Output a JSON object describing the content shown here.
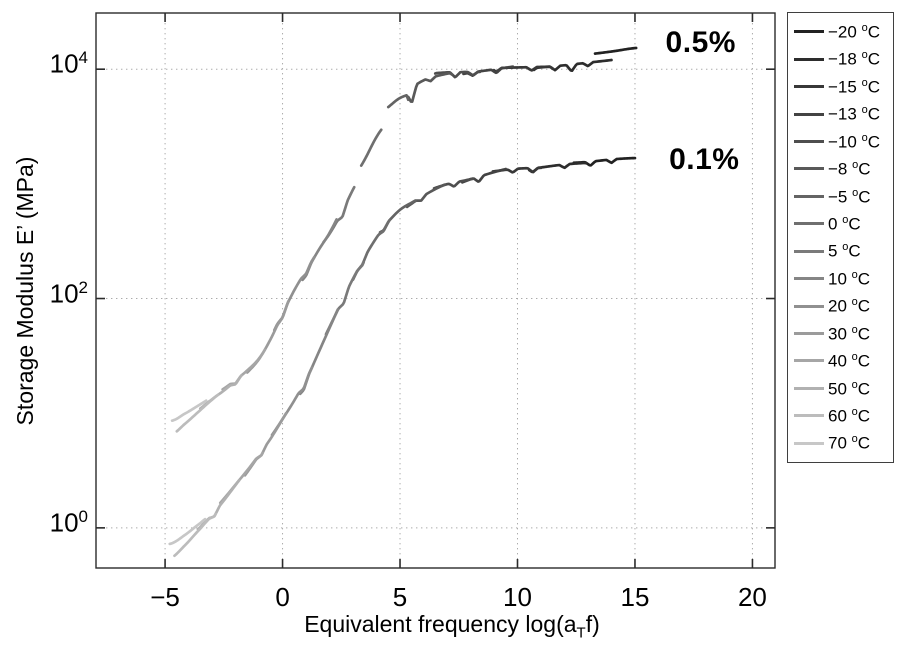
{
  "figure": {
    "ylabel": "Storage Modulus E’ (MPa)",
    "xlabel": {
      "pre": "Equivalent frequency log(a",
      "sub": "T",
      "post": "f)"
    }
  },
  "chart_data": {
    "type": "line",
    "title": "",
    "xlabel": "Equivalent frequency log(a_T f)",
    "ylabel": "Storage Modulus E' (MPa)",
    "axes": {
      "x_scale": "linear",
      "y_scale": "log10",
      "xlim": [
        -7.94,
        20.96
      ],
      "ylim_log10": [
        -0.35,
        4.49
      ],
      "x_ticks": [
        -5,
        0,
        5,
        10,
        15,
        20
      ],
      "y_ticks": [
        {
          "base": "10",
          "exp": "0",
          "value": 1
        },
        {
          "base": "10",
          "exp": "2",
          "value": 100
        },
        {
          "base": "10",
          "exp": "4",
          "value": 10000
        }
      ],
      "grid": {
        "show": true,
        "style": "dotted",
        "color": "#ababab"
      },
      "frame_color": "#2b2b2b"
    },
    "annotations": [
      {
        "text": "0.5%",
        "x": 17.8,
        "y_log10": 4.23
      },
      {
        "text": "0.1%",
        "x": 17.95,
        "y_log10": 3.21
      }
    ],
    "legend": {
      "position": "outside-right",
      "entries": [
        {
          "label": "−20 °C",
          "color": "#222222"
        },
        {
          "label": "−18 °C",
          "color": "#2d2d2d"
        },
        {
          "label": "−15 °C",
          "color": "#383838"
        },
        {
          "label": "−13 °C",
          "color": "#434343"
        },
        {
          "label": "−10 °C",
          "color": "#4e4e4e"
        },
        {
          "label": "−8 °C",
          "color": "#595959"
        },
        {
          "label": "−5 °C",
          "color": "#646464"
        },
        {
          "label": "0 °C",
          "color": "#6f6f6f"
        },
        {
          "label": "5 °C",
          "color": "#7a7a7a"
        },
        {
          "label": "10 °C",
          "color": "#858585"
        },
        {
          "label": "20 °C",
          "color": "#909090"
        },
        {
          "label": "30 °C",
          "color": "#9b9b9b"
        },
        {
          "label": "40 °C",
          "color": "#a6a6a6"
        },
        {
          "label": "50 °C",
          "color": "#b1b1b1"
        },
        {
          "label": "60 °C",
          "color": "#bcbcbc"
        },
        {
          "label": "70 °C",
          "color": "#c7c7c7"
        }
      ]
    },
    "series": [
      {
        "name": "0.5% strain master curve",
        "label": "0.5%",
        "backbone_log10": [
          [
            -4.7,
            0.88
          ],
          [
            -4.2,
            0.95
          ],
          [
            -3.6,
            1.04
          ],
          [
            -3.0,
            1.13
          ],
          [
            -2.5,
            1.2
          ],
          [
            -2.0,
            1.28
          ],
          [
            -1.5,
            1.37
          ],
          [
            -1.0,
            1.48
          ],
          [
            -0.5,
            1.65
          ],
          [
            0,
            1.86
          ],
          [
            0.5,
            2.07
          ],
          [
            1.0,
            2.25
          ],
          [
            1.5,
            2.42
          ],
          [
            2.0,
            2.57
          ],
          [
            2.5,
            2.76
          ],
          [
            3.0,
            2.98
          ],
          [
            3.5,
            3.18
          ],
          [
            4.0,
            3.4
          ],
          [
            4.5,
            3.57
          ],
          [
            5.0,
            3.74
          ],
          [
            5.5,
            3.86
          ],
          [
            6.0,
            3.92
          ],
          [
            6.5,
            3.945
          ],
          [
            7.0,
            3.96
          ],
          [
            8.0,
            3.98
          ],
          [
            9.0,
            3.995
          ],
          [
            10.0,
            4.01
          ],
          [
            11.0,
            4.025
          ],
          [
            12.0,
            4.04
          ],
          [
            13.0,
            4.06
          ],
          [
            14.0,
            4.08
          ],
          [
            15.05,
            4.105
          ]
        ],
        "segments": [
          {
            "t": 15,
            "x": [
              -4.7,
              -3.25
            ],
            "dy": [
              0.055,
              0.015
            ]
          },
          {
            "t": 14,
            "x": [
              -4.5,
              -2.75
            ],
            "dy": [
              -0.06,
              -0.005
            ]
          },
          {
            "t": 13,
            "x": [
              -3.5,
              -1.75
            ],
            "dy": [
              -0.015,
              0.005
            ]
          },
          {
            "t": 12,
            "x": [
              -2.55,
              -0.75
            ],
            "dy": [
              0.015,
              -0.005
            ]
          },
          {
            "t": 11,
            "x": [
              -1.5,
              0.25
            ],
            "dy": [
              -0.015,
              0.01
            ]
          },
          {
            "t": 10,
            "x": [
              -0.35,
              1.35
            ],
            "dy": [
              0.015,
              -0.01
            ]
          },
          {
            "t": 9,
            "x": [
              0.85,
              2.3
            ],
            "dy": [
              -0.025,
              0.01
            ]
          },
          {
            "t": 8,
            "x": [
              1.75,
              3.05
            ],
            "dy": [
              0.0,
              -0.03
            ]
          },
          {
            "t": 7,
            "x": [
              3.35,
              4.2
            ],
            "dy": [
              0.04,
              0.0
            ]
          },
          {
            "t": 6,
            "x": [
              4.5,
              5.35
            ],
            "dy": [
              0.1,
              -0.055
            ]
          },
          {
            "t": 5,
            "x": [
              5.35,
              7.2
            ],
            "dy": [
              -0.03,
              0.005
            ]
          },
          {
            "t": 4,
            "x": [
              6.5,
              8.4
            ],
            "dy": [
              0.02,
              -0.01
            ]
          },
          {
            "t": 3,
            "x": [
              7.7,
              9.8
            ],
            "dy": [
              -0.015,
              0.015
            ]
          },
          {
            "t": 2,
            "x": [
              9.0,
              11.5
            ],
            "dy": [
              0.015,
              -0.01
            ]
          },
          {
            "t": 1,
            "x": [
              10.7,
              14.0
            ],
            "dy": [
              -0.01,
              0.0
            ]
          },
          {
            "t": 0,
            "x": [
              13.3,
              15.05
            ],
            "dy": [
              0.07,
              0.08
            ]
          }
        ],
        "notches": [
          [
            -2.0,
            0.03
          ],
          [
            0.0,
            0.035
          ],
          [
            1.0,
            0.03
          ],
          [
            2.55,
            0.05
          ],
          [
            5.5,
            0.13
          ],
          [
            6.3,
            0.03
          ],
          [
            7.35,
            0.045
          ],
          [
            8.1,
            0.03
          ],
          [
            9.1,
            0.035
          ],
          [
            10.6,
            0.03
          ],
          [
            11.6,
            0.035
          ],
          [
            12.3,
            0.06
          ],
          [
            13.0,
            0.03
          ]
        ]
      },
      {
        "name": "0.1% strain master curve",
        "label": "0.1%",
        "backbone_log10": [
          [
            -4.8,
            -0.2
          ],
          [
            -4.2,
            -0.11
          ],
          [
            -3.5,
            0.02
          ],
          [
            -3.0,
            0.12
          ],
          [
            -2.5,
            0.24
          ],
          [
            -2.0,
            0.37
          ],
          [
            -1.5,
            0.5
          ],
          [
            -1.0,
            0.64
          ],
          [
            -0.5,
            0.78
          ],
          [
            0,
            0.94
          ],
          [
            0.5,
            1.11
          ],
          [
            1.0,
            1.3
          ],
          [
            1.5,
            1.52
          ],
          [
            2.0,
            1.74
          ],
          [
            2.5,
            1.96
          ],
          [
            3.0,
            2.18
          ],
          [
            3.5,
            2.37
          ],
          [
            4.0,
            2.53
          ],
          [
            4.5,
            2.66
          ],
          [
            5.0,
            2.77
          ],
          [
            5.5,
            2.84
          ],
          [
            6.0,
            2.9
          ],
          [
            6.5,
            2.95
          ],
          [
            7.0,
            2.99
          ],
          [
            7.5,
            3.02
          ],
          [
            8.0,
            3.05
          ],
          [
            9.0,
            3.095
          ],
          [
            10.0,
            3.13
          ],
          [
            11.0,
            3.15
          ],
          [
            12.0,
            3.17
          ],
          [
            13.0,
            3.18
          ],
          [
            14.0,
            3.2
          ],
          [
            15.0,
            3.21
          ]
        ],
        "segments": [
          {
            "t": 15,
            "x": [
              -4.8,
              -3.3
            ],
            "dy": [
              0.06,
              0.015
            ]
          },
          {
            "t": 14,
            "x": [
              -4.6,
              -2.85
            ],
            "dy": [
              -0.065,
              -0.005
            ]
          },
          {
            "t": 13,
            "x": [
              -3.6,
              -1.85
            ],
            "dy": [
              -0.015,
              0.005
            ]
          },
          {
            "t": 12,
            "x": [
              -2.65,
              -0.85
            ],
            "dy": [
              0.015,
              -0.005
            ]
          },
          {
            "t": 11,
            "x": [
              -1.6,
              0.15
            ],
            "dy": [
              -0.015,
              0.01
            ]
          },
          {
            "t": 10,
            "x": [
              -0.45,
              1.25
            ],
            "dy": [
              0.015,
              -0.01
            ]
          },
          {
            "t": 9,
            "x": [
              0.75,
              2.35
            ],
            "dy": [
              -0.02,
              0.01
            ]
          },
          {
            "t": 8,
            "x": [
              1.85,
              3.45
            ],
            "dy": [
              0.015,
              -0.015
            ]
          },
          {
            "t": 7,
            "x": [
              3.0,
              4.55
            ],
            "dy": [
              -0.015,
              0.01
            ]
          },
          {
            "t": 6,
            "x": [
              4.15,
              5.65
            ],
            "dy": [
              0.015,
              -0.005
            ]
          },
          {
            "t": 5,
            "x": [
              5.3,
              6.9
            ],
            "dy": [
              -0.015,
              0.01
            ]
          },
          {
            "t": 4,
            "x": [
              6.45,
              8.1
            ],
            "dy": [
              0.015,
              -0.01
            ]
          },
          {
            "t": 3,
            "x": [
              7.65,
              9.5
            ],
            "dy": [
              -0.015,
              0.015
            ]
          },
          {
            "t": 2,
            "x": [
              8.95,
              11.0
            ],
            "dy": [
              0.015,
              -0.01
            ]
          },
          {
            "t": 1,
            "x": [
              10.5,
              12.9
            ],
            "dy": [
              -0.01,
              0.005
            ]
          },
          {
            "t": 0,
            "x": [
              12.4,
              15.0
            ],
            "dy": [
              0.01,
              0.015
            ]
          }
        ],
        "notches": [
          [
            -2.9,
            0.035
          ],
          [
            -0.9,
            0.03
          ],
          [
            0.9,
            0.04
          ],
          [
            2.6,
            0.05
          ],
          [
            3.4,
            0.03
          ],
          [
            4.3,
            0.03
          ],
          [
            5.9,
            0.03
          ],
          [
            7.3,
            0.035
          ],
          [
            8.35,
            0.045
          ],
          [
            9.8,
            0.03
          ],
          [
            10.65,
            0.035
          ],
          [
            12.0,
            0.03
          ],
          [
            13.1,
            0.035
          ],
          [
            14.0,
            0.03
          ]
        ]
      }
    ]
  }
}
